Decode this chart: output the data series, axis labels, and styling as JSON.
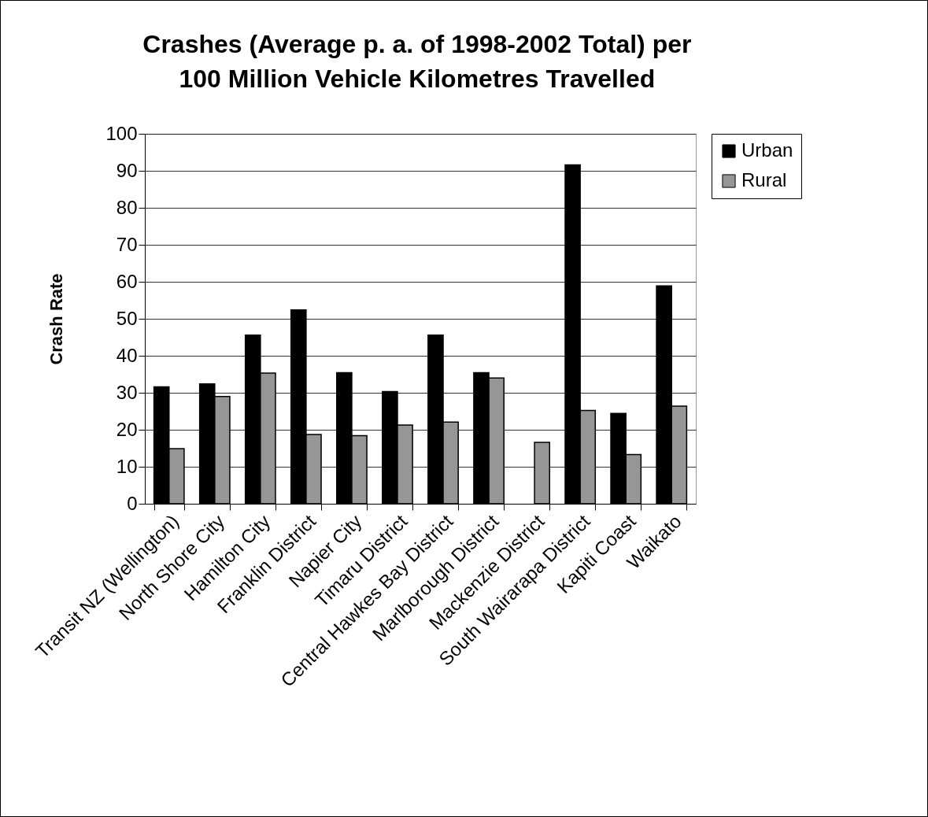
{
  "chart_data": {
    "type": "bar",
    "title": "Crashes (Average p. a. of 1998-2002 Total) per 100 Million Vehicle Kilometres Travelled",
    "ylabel": "Crash Rate",
    "categories": [
      "Transit NZ (Wellington)",
      "North Shore City",
      "Hamilton City",
      "Franklin District",
      "Napier City",
      "Timaru District",
      "Central Hawkes Bay District",
      "Marlborough District",
      "Mackenzie District",
      "South Wairarapa District",
      "Kapiti Coast",
      "Waikato"
    ],
    "series": [
      {
        "name": "Urban",
        "color": "#000000",
        "values": [
          31.6,
          32.4,
          45.6,
          52.4,
          35.4,
          30.3,
          45.6,
          35.4,
          null,
          91.6,
          24.4,
          58.9
        ]
      },
      {
        "name": "Rural",
        "color": "#969696",
        "values": [
          14.9,
          29.0,
          35.3,
          18.7,
          18.4,
          21.3,
          22.1,
          34.0,
          16.6,
          25.2,
          13.3,
          26.4
        ]
      }
    ],
    "ylim": [
      0,
      100
    ],
    "yticks": [
      0,
      10,
      20,
      30,
      40,
      50,
      60,
      70,
      80,
      90,
      100
    ],
    "grid": "y",
    "legend": "right"
  }
}
